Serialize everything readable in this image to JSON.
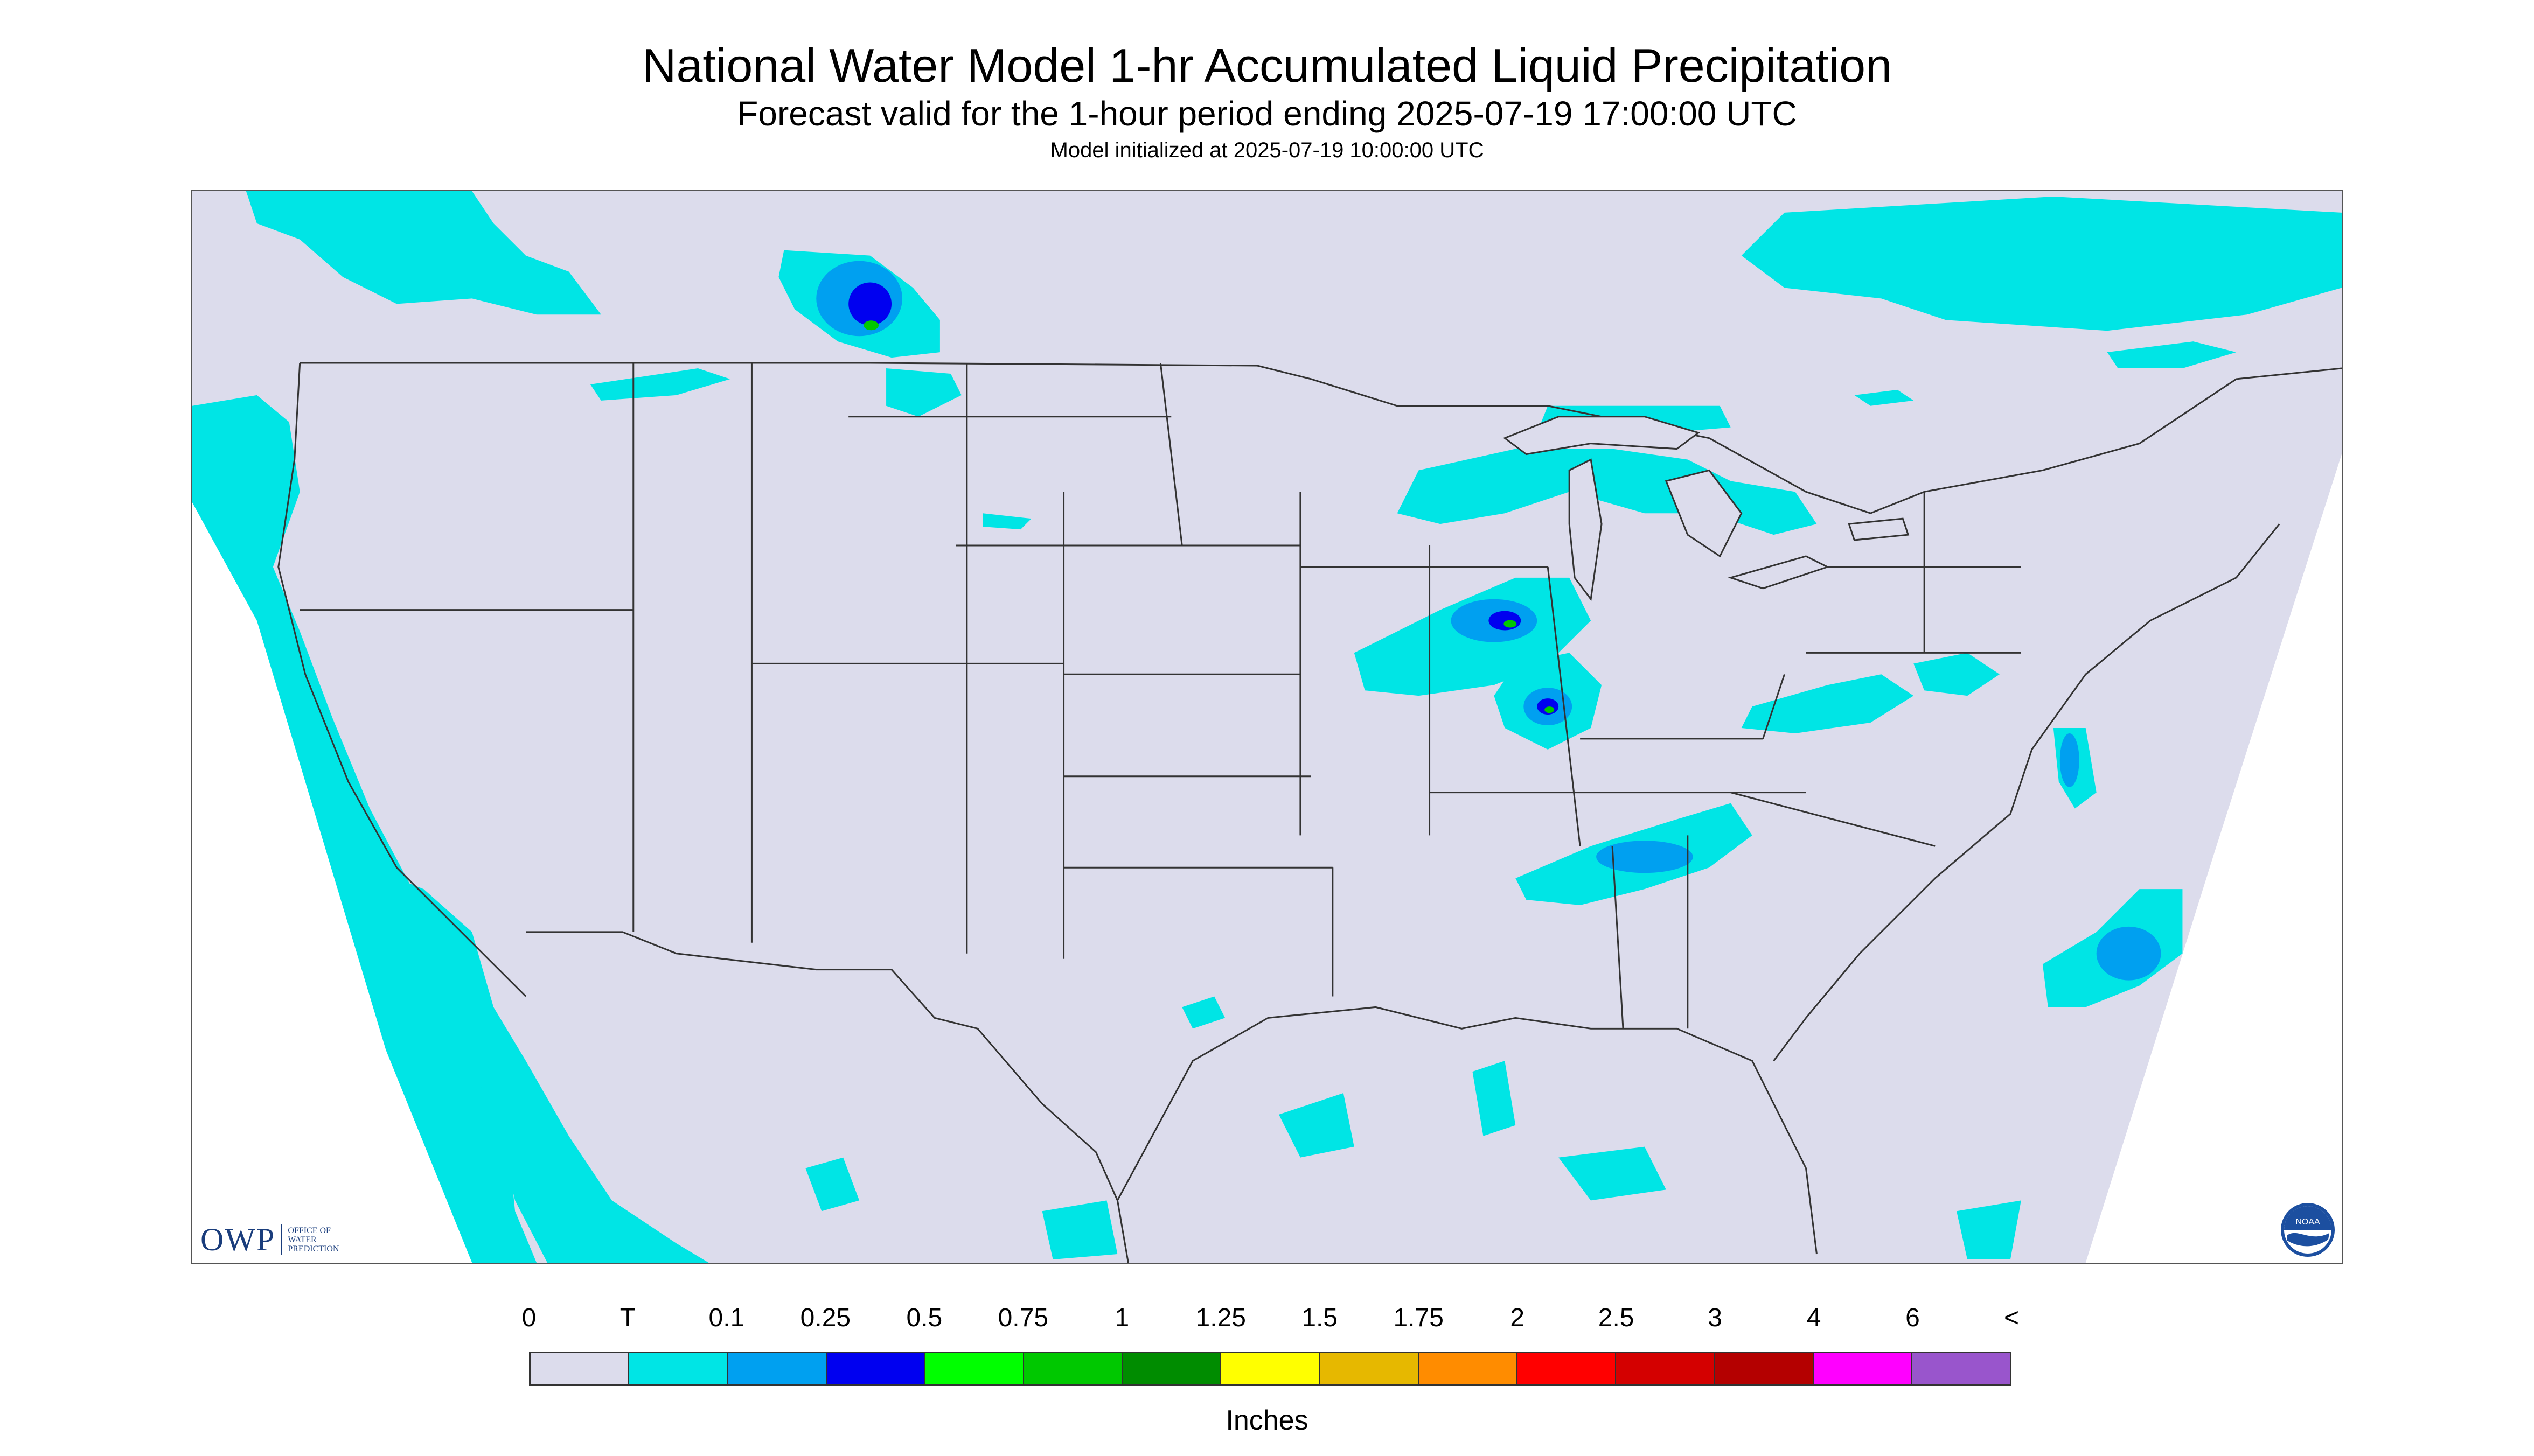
{
  "header": {
    "title": "National Water Model 1-hr Accumulated Liquid Precipitation",
    "subtitle": "Forecast valid for the 1-hour period ending 2025-07-19 17:00:00 UTC",
    "init": "Model initialized at 2025-07-19 10:00:00 UTC"
  },
  "logos": {
    "owp_text": "OWP",
    "owp_sub": "OFFICE OF WATER PREDICTION",
    "noaa_text": "NOAA"
  },
  "legend": {
    "labels": [
      "0",
      "T",
      "0.1",
      "0.25",
      "0.5",
      "0.75",
      "1",
      "1.25",
      "1.5",
      "1.75",
      "2",
      "2.5",
      "3",
      "4",
      "6",
      "<"
    ],
    "colors": [
      "#dcdcec",
      "#00e5e5",
      "#00a0f0",
      "#0000f0",
      "#00ff00",
      "#00c800",
      "#008c00",
      "#ffff00",
      "#e6b800",
      "#ff8c00",
      "#ff0000",
      "#d40000",
      "#b40000",
      "#ff00ff",
      "#9955cc"
    ],
    "units": "Inches"
  },
  "colors": {
    "background": "#dcdcec",
    "trace": "#00e5e5",
    "light": "#00a0f0",
    "moderate": "#0000f0",
    "heavy": "#00c800",
    "boundary": "#333333"
  }
}
